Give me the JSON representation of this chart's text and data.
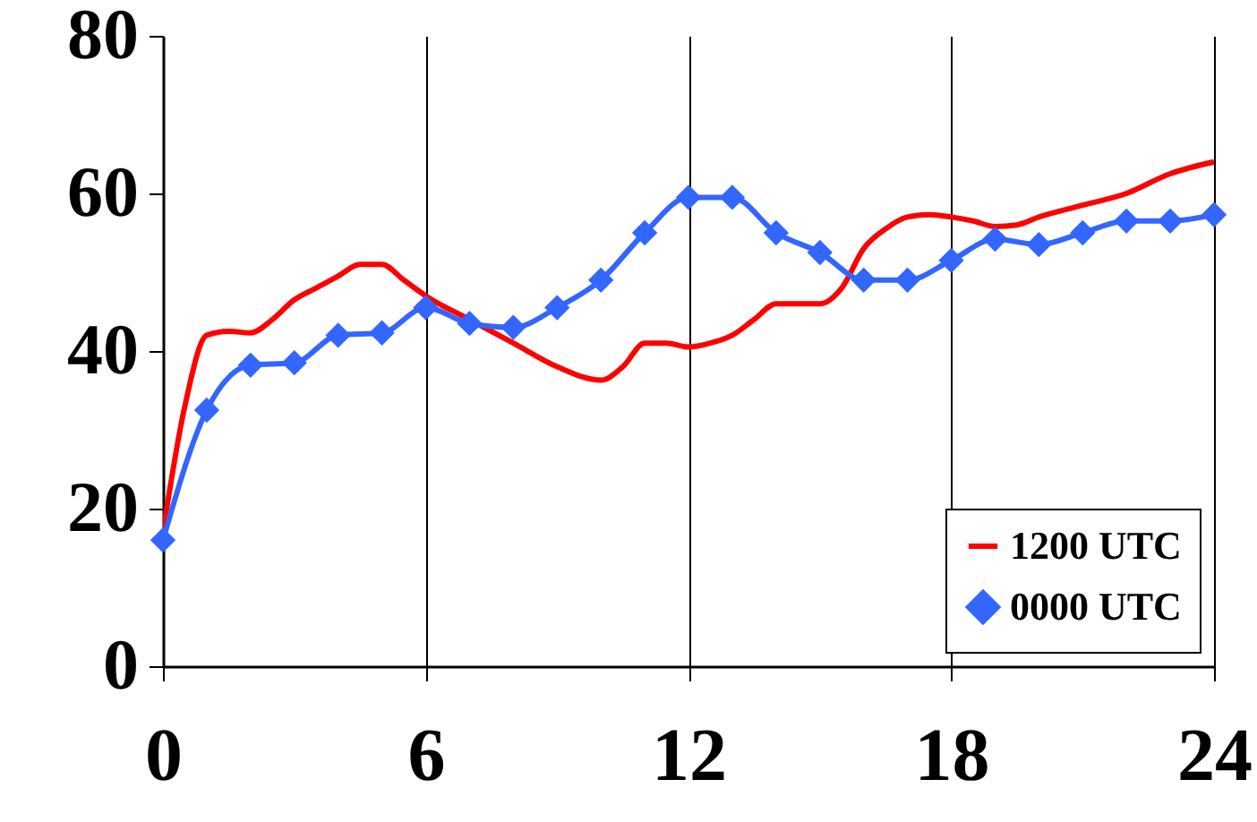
{
  "chart_data": {
    "type": "line",
    "xlim": [
      0,
      24
    ],
    "xticks": [
      0,
      6,
      12,
      18,
      24
    ],
    "ylim": [
      0,
      80
    ],
    "yticks": [
      0,
      20,
      40,
      60,
      80
    ],
    "grid": "x",
    "legend": "bottom right",
    "series": [
      {
        "name": "1200 UTC",
        "color": "#ff0000",
        "marker": "none",
        "x": [
          0,
          0.5,
          1,
          1.5,
          2,
          2.5,
          3,
          3.5,
          4,
          4.5,
          5,
          5.5,
          6,
          7,
          8,
          9,
          10,
          10.5,
          11,
          11.5,
          12,
          12.5,
          13,
          13.5,
          14,
          14.5,
          15,
          15.5,
          16,
          16.5,
          17,
          17.5,
          18,
          18.5,
          19,
          19.5,
          20,
          21,
          22,
          23,
          24
        ],
        "values": [
          17,
          33,
          42,
          42.5,
          42.3,
          44,
          46.5,
          48,
          49.5,
          51,
          51,
          49,
          47,
          44,
          41,
          38,
          36.3,
          38,
          41,
          41,
          40.5,
          41,
          42,
          44,
          46,
          46,
          46,
          48,
          53,
          55.5,
          57,
          57.3,
          57,
          56.5,
          55.8,
          56,
          57,
          58.5,
          60,
          62.5,
          64
        ]
      },
      {
        "name": "0000 UTC",
        "color": "#3366ff",
        "marker": "diamond",
        "x": [
          0,
          1,
          2,
          3,
          4,
          5,
          6,
          7,
          8,
          9,
          10,
          11,
          12,
          13,
          14,
          15,
          16,
          17,
          18,
          19,
          20,
          21,
          22,
          23,
          24
        ],
        "values": [
          16,
          32.5,
          38.2,
          38.5,
          42,
          42.3,
          45.5,
          43.5,
          43,
          45.5,
          49,
          55,
          59.5,
          59.5,
          55,
          52.5,
          49,
          49,
          51.5,
          54.2,
          53.5,
          55,
          56.5,
          56.5,
          57.3
        ]
      }
    ]
  }
}
